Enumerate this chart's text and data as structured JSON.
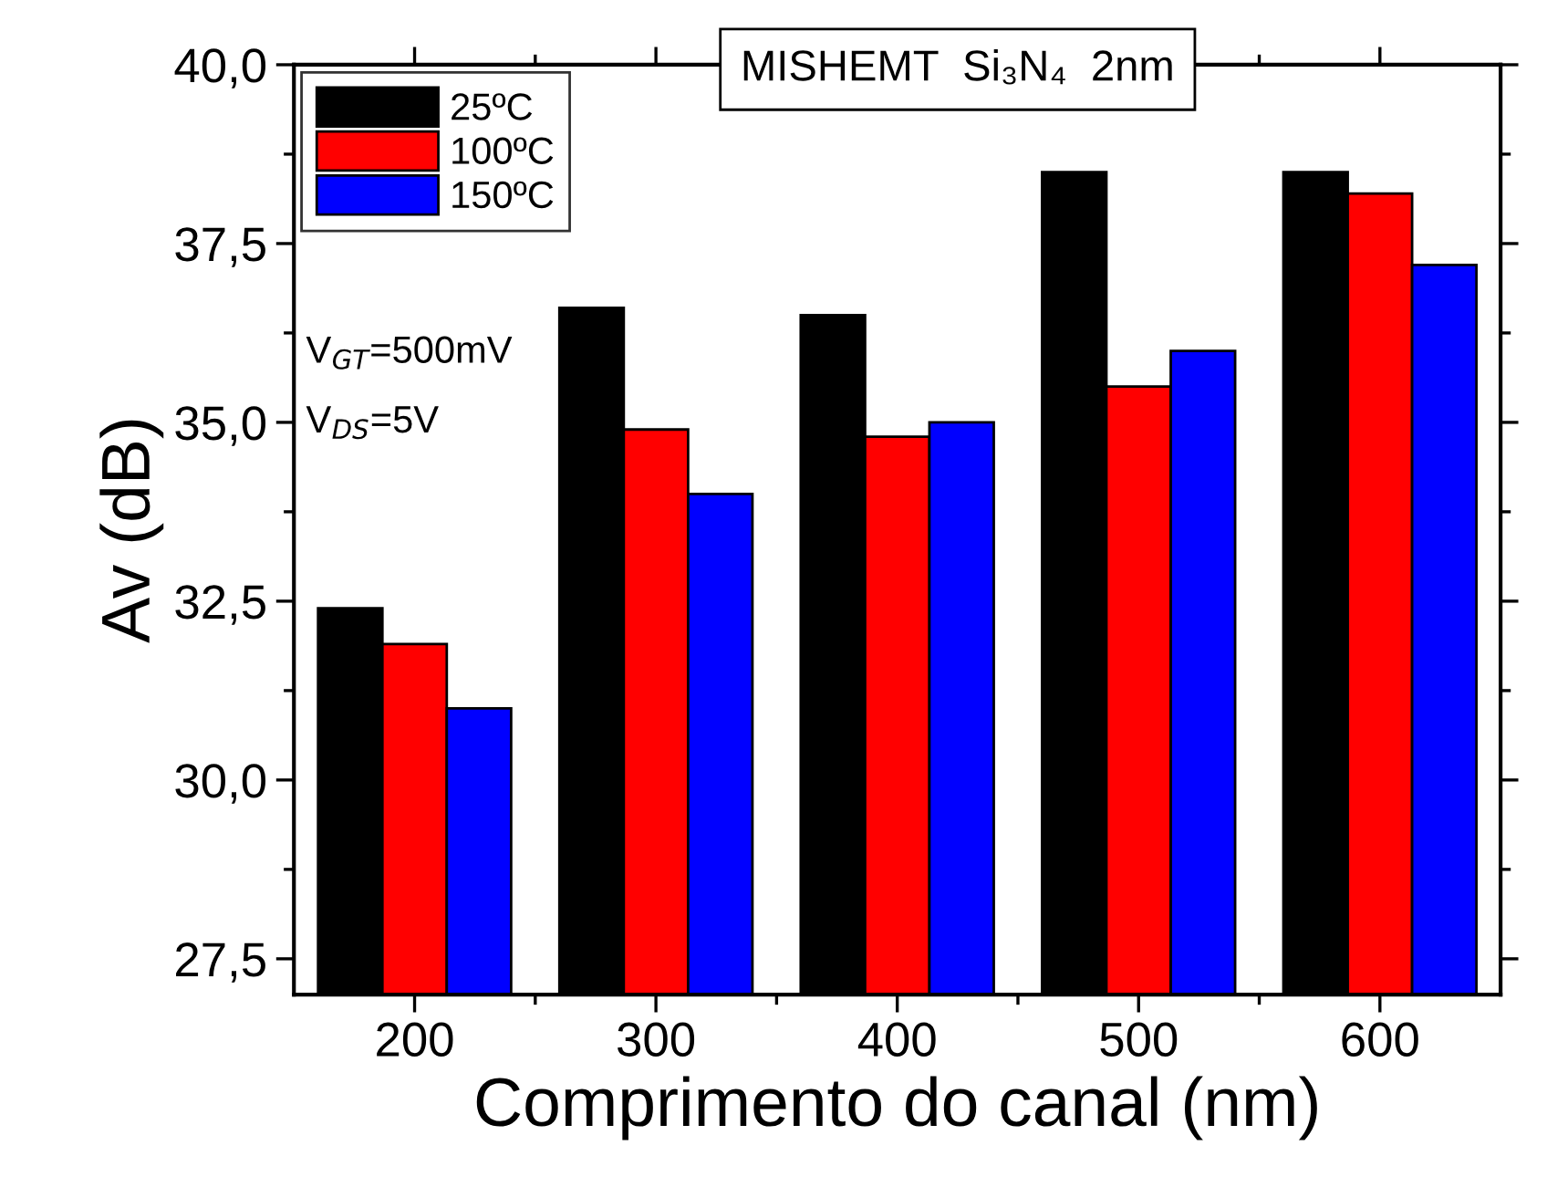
{
  "chart_data": {
    "type": "bar",
    "title": "MISHEMT  Si₃N₄  2nm",
    "xlabel": "Comprimento do canal (nm)",
    "ylabel": "Av (dB)",
    "categories": [
      "200",
      "300",
      "400",
      "500",
      "600"
    ],
    "series": [
      {
        "name": "25ºC",
        "color": "#000000",
        "values": [
          32.4,
          36.6,
          36.5,
          38.5,
          38.5
        ]
      },
      {
        "name": "100ºC",
        "color": "#ff0000",
        "values": [
          31.9,
          34.9,
          34.8,
          35.5,
          38.2
        ]
      },
      {
        "name": "150ºC",
        "color": "#0000ff",
        "values": [
          31.0,
          34.0,
          35.0,
          36.0,
          37.2
        ]
      }
    ],
    "ylim": [
      27,
      40
    ],
    "yticks": [
      {
        "value": 27.5,
        "label": "27,5"
      },
      {
        "value": 30,
        "label": "30,0"
      },
      {
        "value": 32.5,
        "label": "32,5"
      },
      {
        "value": 35,
        "label": "35,0"
      },
      {
        "value": 37.5,
        "label": "37,5"
      },
      {
        "value": 40,
        "label": "40,0"
      }
    ],
    "annotations": [
      "V$_{GT}$=500mV",
      "V$_{DS}$=5V"
    ],
    "legend": "top left",
    "grid": false
  }
}
